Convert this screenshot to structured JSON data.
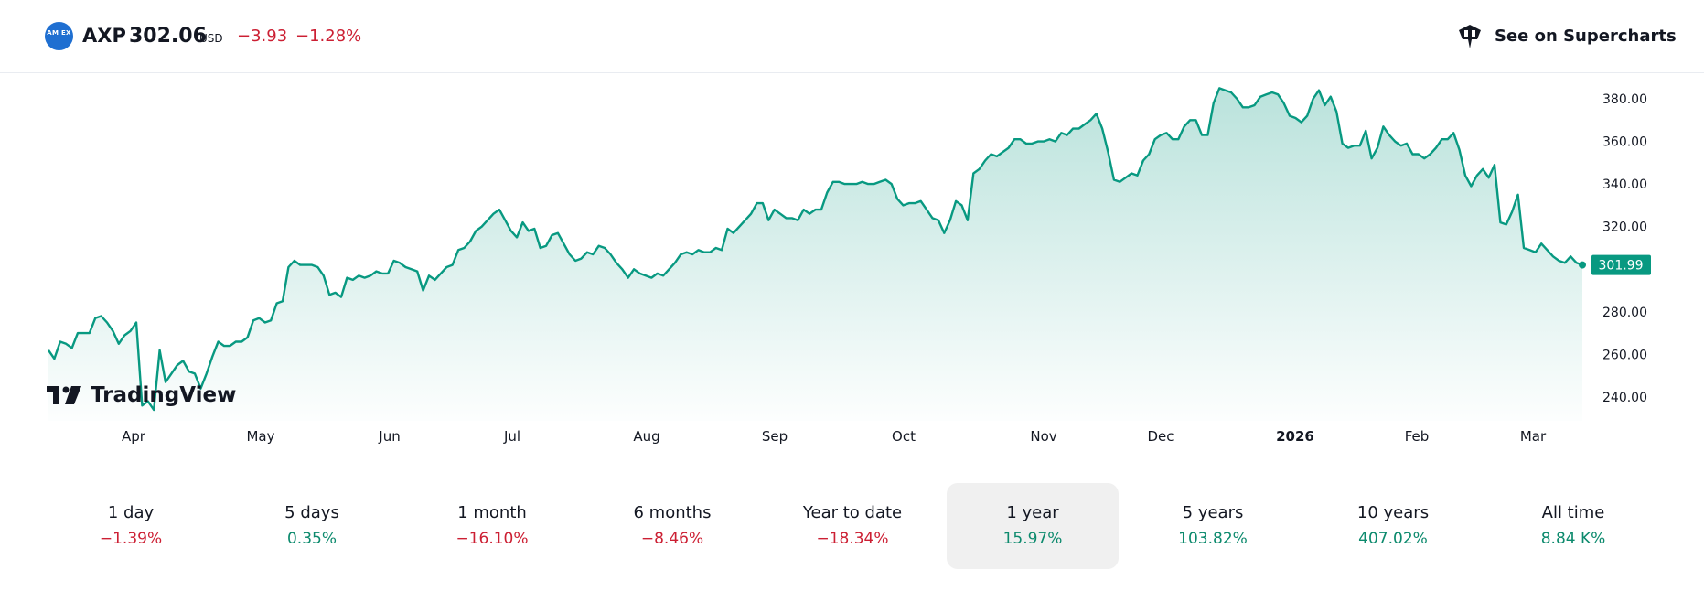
{
  "header": {
    "logo_text": "AM EX",
    "symbol": "AXP",
    "price": "302.06",
    "currency": "USD",
    "change": "−3.93",
    "change_percent": "−1.28%",
    "change_color": "#cc1f33",
    "supercharts_label": "See on Supercharts",
    "supercharts_icon": "tradingview-crown-icon"
  },
  "watermark": {
    "text": "TradingView"
  },
  "chart_data": {
    "type": "area",
    "series": [
      {
        "values": [
          262,
          258,
          266,
          265,
          263,
          270,
          270,
          270,
          277,
          278,
          275,
          271,
          265,
          269,
          271,
          275,
          236,
          238,
          234,
          262,
          247,
          251,
          255,
          257,
          252,
          251,
          244,
          251,
          259,
          266,
          264,
          264,
          266,
          266,
          268,
          276,
          277,
          275,
          276,
          284,
          285,
          301,
          304,
          302,
          302,
          302,
          301,
          297,
          288,
          289,
          287,
          296,
          295,
          297,
          296,
          297,
          299,
          298,
          298,
          304,
          303,
          301,
          300,
          299,
          290,
          297,
          295,
          298,
          301,
          302,
          309,
          310,
          313,
          318,
          320,
          323,
          326,
          328,
          323,
          318,
          315,
          322,
          318,
          319,
          310,
          311,
          316,
          317,
          312,
          307,
          304,
          305,
          308,
          307,
          311,
          310,
          307,
          303,
          300,
          296,
          300,
          298,
          297,
          296,
          298,
          297,
          300,
          303,
          307,
          308,
          307,
          309,
          308,
          308,
          310,
          309,
          319,
          317,
          320,
          323,
          326,
          331,
          331,
          323,
          328,
          326,
          324,
          324,
          323,
          328,
          326,
          328,
          328,
          336,
          341,
          341,
          340,
          340,
          340,
          341,
          340,
          340,
          341,
          342,
          340,
          333,
          330,
          331,
          331,
          332,
          328,
          324,
          323,
          317,
          323,
          332,
          330,
          323,
          345,
          347,
          351,
          354,
          353,
          355,
          357,
          361,
          361,
          359,
          359,
          360,
          360,
          361,
          360,
          364,
          363,
          366,
          366,
          368,
          370,
          373,
          366,
          355,
          342,
          341,
          343,
          345,
          344,
          351,
          354,
          361,
          363,
          364,
          361,
          361,
          367,
          370,
          370,
          363,
          363,
          378,
          385,
          384,
          383,
          380,
          376,
          376,
          377,
          381,
          382,
          383,
          382,
          378,
          372,
          371,
          369,
          372,
          380,
          384,
          377,
          381,
          374,
          359,
          357,
          358,
          358,
          365,
          352,
          357,
          367,
          363,
          360,
          358,
          359,
          354,
          354,
          352,
          354,
          357,
          361,
          361,
          364,
          356,
          344,
          339,
          344,
          347,
          343,
          349,
          322,
          321,
          327,
          335,
          310,
          309,
          308,
          312,
          309,
          306,
          304,
          303,
          306,
          303,
          302
        ]
      }
    ],
    "last_value": "301.99",
    "x_tick_labels": [
      "Apr",
      "May",
      "Jun",
      "Jul",
      "Aug",
      "Sep",
      "Oct",
      "Nov",
      "Dec",
      "2026",
      "Feb",
      "Mar"
    ],
    "y_tick_labels": [
      "380.00",
      "360.00",
      "340.00",
      "320.00",
      "280.00",
      "260.00",
      "240.00"
    ],
    "ylim": [
      232,
      388
    ],
    "grid": false,
    "line_color": "#089981"
  },
  "periods": [
    {
      "label": "1 day",
      "value": "−1.39%",
      "color": "#cc1f33",
      "active": false
    },
    {
      "label": "5 days",
      "value": "0.35%",
      "color": "#0c8a6d",
      "active": false
    },
    {
      "label": "1 month",
      "value": "−16.10%",
      "color": "#cc1f33",
      "active": false
    },
    {
      "label": "6 months",
      "value": "−8.46%",
      "color": "#cc1f33",
      "active": false
    },
    {
      "label": "Year to date",
      "value": "−18.34%",
      "color": "#cc1f33",
      "active": false
    },
    {
      "label": "1 year",
      "value": "15.97%",
      "color": "#0c8a6d",
      "active": true
    },
    {
      "label": "5 years",
      "value": "103.82%",
      "color": "#0c8a6d",
      "active": false
    },
    {
      "label": "10 years",
      "value": "407.02%",
      "color": "#0c8a6d",
      "active": false
    },
    {
      "label": "All time",
      "value": "8.84 K%",
      "color": "#0c8a6d",
      "active": false
    }
  ]
}
